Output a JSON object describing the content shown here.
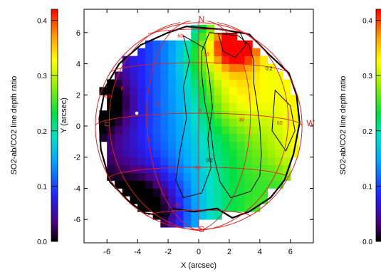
{
  "chart_data": {
    "type": "heatmap",
    "xlabel": "X (arcsec)",
    "ylabel": "Y (arcsec)",
    "xlim": [
      -7.5,
      7.5
    ],
    "ylim": [
      -7.5,
      7.5
    ],
    "x_ticks": [
      -6,
      -4,
      -2,
      0,
      2,
      4,
      6
    ],
    "y_ticks": [
      -6,
      -4,
      -2,
      0,
      2,
      4,
      6
    ],
    "colorbar": {
      "label": "SO2-ab/CO2 line depth ratio",
      "range": [
        0.0,
        0.42
      ],
      "ticks": [
        0.0,
        0.1,
        0.2,
        0.3,
        0.4
      ],
      "tick_labels": [
        "0.0",
        "0.1",
        "0.2",
        "0.3",
        "0.4"
      ]
    },
    "compass": {
      "north": "N",
      "south": "S",
      "east": "E",
      "west": "W"
    },
    "disk": {
      "center_x": 0.0,
      "center_y": 0.0,
      "radius": 6.5
    },
    "latitude_labels": [
      "60",
      "30",
      "0",
      "-30",
      "-60"
    ],
    "longitude_labels": [
      "-30",
      "-60",
      "0",
      "30",
      "60"
    ],
    "contour_labels": [
      "0.2",
      "0.2"
    ],
    "pixel_size": 0.5,
    "peak": {
      "x": 2.5,
      "y": 5.5,
      "value": 0.42
    }
  }
}
